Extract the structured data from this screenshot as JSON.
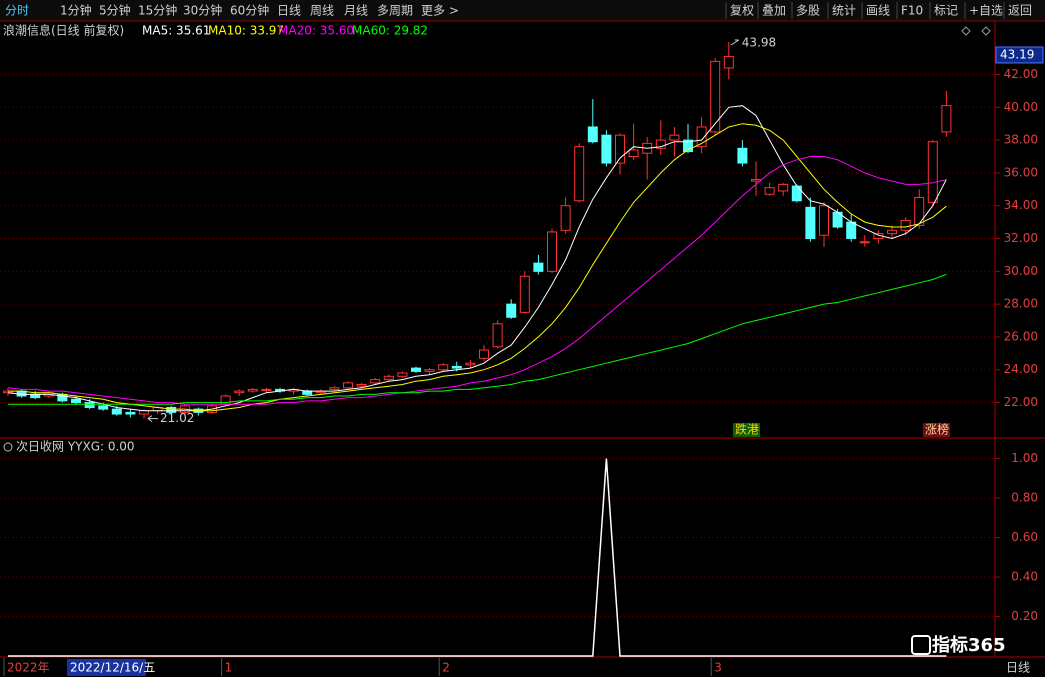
{
  "toolbar": {
    "left": [
      "分时",
      "1分钟",
      "5分钟",
      "15分钟",
      "30分钟",
      "60分钟",
      "日线",
      "周线",
      "月线",
      "多周期",
      "更多 >"
    ],
    "right": [
      "复权",
      "叠加",
      "多股",
      "统计",
      "画线",
      "F10",
      "标记",
      "+自选",
      "返回"
    ]
  },
  "badges": [
    "跌港",
    "涨榜"
  ],
  "cursor_label": "2022/12/16/五",
  "cursor_price": 43.19,
  "logo": "指标365",
  "period": "日线",
  "chart_data": [
    {
      "type": "candlestick",
      "title": "浪潮信息(日线 前复权)",
      "categories": [
        "2022年",
        null,
        null,
        null,
        null,
        null,
        null,
        null,
        null,
        null,
        null,
        null,
        null,
        null,
        null,
        null,
        "1",
        null,
        null,
        null,
        null,
        null,
        null,
        null,
        null,
        null,
        null,
        null,
        null,
        null,
        null,
        null,
        "2",
        null,
        null,
        null,
        null,
        null,
        null,
        null,
        null,
        null,
        null,
        null,
        null,
        null,
        null,
        null,
        null,
        null,
        null,
        null,
        "3",
        null,
        null,
        null,
        null,
        null,
        null,
        null,
        null,
        null,
        null,
        null,
        null,
        null,
        null,
        null,
        null,
        null
      ],
      "open": [
        22.6,
        22.7,
        22.5,
        22.4,
        22.5,
        22.2,
        22.0,
        21.8,
        21.6,
        21.4,
        21.3,
        21.5,
        21.7,
        21.4,
        21.6,
        21.4,
        21.9,
        22.6,
        22.7,
        22.8,
        22.8,
        22.7,
        22.7,
        22.6,
        22.8,
        22.9,
        23.0,
        23.2,
        23.4,
        23.6,
        24.1,
        23.9,
        24.0,
        24.2,
        24.3,
        24.7,
        25.4,
        28.0,
        27.5,
        30.5,
        30.0,
        32.5,
        34.3,
        38.8,
        38.3,
        36.6,
        37.0,
        37.2,
        37.5,
        38.0,
        38.0,
        37.6,
        38.5,
        42.4,
        37.5,
        35.5,
        34.7,
        34.9,
        35.2,
        33.9,
        32.2,
        33.6,
        33.0,
        31.8,
        32.0,
        32.3,
        32.5,
        32.8,
        34.2,
        38.5
      ],
      "high": [
        22.9,
        22.8,
        22.7,
        22.7,
        22.6,
        22.4,
        22.2,
        22.0,
        21.8,
        21.6,
        21.6,
        21.8,
        21.8,
        21.9,
        21.7,
        21.9,
        22.5,
        22.8,
        22.9,
        22.9,
        22.9,
        22.9,
        22.8,
        22.8,
        23.0,
        23.3,
        23.2,
        23.5,
        23.7,
        23.9,
        24.2,
        24.1,
        24.4,
        24.5,
        24.6,
        25.5,
        27.0,
        28.3,
        30.0,
        31.0,
        32.6,
        34.5,
        37.8,
        40.5,
        38.6,
        38.4,
        39.0,
        38.2,
        39.2,
        38.8,
        39.0,
        39.4,
        43.0,
        43.98,
        38.0,
        36.7,
        35.4,
        35.4,
        35.3,
        34.5,
        34.2,
        33.8,
        33.5,
        32.2,
        32.5,
        32.8,
        33.3,
        35.0,
        38.0,
        41.0
      ],
      "low": [
        22.4,
        22.3,
        22.2,
        22.3,
        22.0,
        21.9,
        21.6,
        21.5,
        21.2,
        21.1,
        21.02,
        21.3,
        21.3,
        21.3,
        21.2,
        21.3,
        21.8,
        22.4,
        22.6,
        22.6,
        22.6,
        22.5,
        22.4,
        22.5,
        22.7,
        22.8,
        22.9,
        23.1,
        23.3,
        23.5,
        23.8,
        23.7,
        23.9,
        23.9,
        24.1,
        24.5,
        25.3,
        27.1,
        27.4,
        29.8,
        29.9,
        32.3,
        34.2,
        37.8,
        36.4,
        35.9,
        36.8,
        35.6,
        37.1,
        37.0,
        37.2,
        37.2,
        38.3,
        41.7,
        36.4,
        34.6,
        34.6,
        34.6,
        34.2,
        31.8,
        31.5,
        32.6,
        31.8,
        31.5,
        31.7,
        32.0,
        32.2,
        32.6,
        34.0,
        38.2
      ],
      "close": [
        22.7,
        22.4,
        22.3,
        22.6,
        22.1,
        22.0,
        21.7,
        21.6,
        21.3,
        21.3,
        21.5,
        21.7,
        21.4,
        21.8,
        21.4,
        21.8,
        22.4,
        22.7,
        22.8,
        22.8,
        22.7,
        22.8,
        22.5,
        22.7,
        22.9,
        23.2,
        23.1,
        23.4,
        23.6,
        23.8,
        23.9,
        24.0,
        24.3,
        24.1,
        24.4,
        25.2,
        26.8,
        27.2,
        29.7,
        30.0,
        32.4,
        34.0,
        37.6,
        37.9,
        36.6,
        38.3,
        37.4,
        37.8,
        38.0,
        38.3,
        37.3,
        38.8,
        42.8,
        43.1,
        36.6,
        35.6,
        35.1,
        35.3,
        34.3,
        32.0,
        34.0,
        32.7,
        32.0,
        31.8,
        32.3,
        32.5,
        33.1,
        34.5,
        37.9,
        40.1
      ],
      "up_color": "#ff3232",
      "down_color": "#54ffff",
      "series": [
        {
          "name": "MA5: 35.61",
          "color": "#ffffff",
          "values": [
            22.6,
            22.5,
            22.5,
            22.5,
            22.4,
            22.3,
            22.1,
            21.9,
            21.7,
            21.6,
            21.5,
            21.5,
            21.5,
            21.5,
            21.5,
            21.6,
            21.8,
            22.0,
            22.3,
            22.6,
            22.7,
            22.8,
            22.7,
            22.7,
            22.7,
            22.8,
            22.9,
            23.1,
            23.3,
            23.4,
            23.6,
            23.7,
            23.9,
            24.0,
            24.1,
            24.4,
            25.0,
            25.5,
            26.6,
            27.8,
            29.2,
            30.7,
            32.7,
            34.4,
            35.7,
            36.9,
            37.6,
            37.5,
            37.6,
            37.9,
            37.9,
            38.0,
            39.0,
            40.0,
            40.1,
            39.5,
            38.0,
            36.5,
            35.2,
            34.3,
            34.1,
            33.6,
            33.0,
            32.6,
            32.2,
            32.0,
            32.3,
            32.9,
            34.0,
            35.61
          ]
        },
        {
          "name": "MA10: 33.97",
          "color": "#ffff00",
          "values": [
            22.7,
            22.7,
            22.6,
            22.6,
            22.5,
            22.4,
            22.3,
            22.2,
            22.0,
            21.9,
            21.8,
            21.7,
            21.6,
            21.6,
            21.5,
            21.5,
            21.6,
            21.7,
            21.9,
            22.0,
            22.2,
            22.3,
            22.4,
            22.5,
            22.6,
            22.7,
            22.8,
            22.9,
            23.0,
            23.1,
            23.3,
            23.4,
            23.6,
            23.7,
            23.8,
            24.0,
            24.3,
            24.7,
            25.3,
            26.0,
            26.8,
            27.8,
            29.0,
            30.4,
            31.7,
            33.0,
            34.2,
            35.1,
            36.0,
            36.8,
            37.4,
            37.8,
            38.3,
            38.8,
            39.0,
            38.9,
            38.6,
            38.0,
            37.0,
            36.0,
            35.0,
            34.2,
            33.5,
            33.0,
            32.8,
            32.7,
            32.7,
            32.9,
            33.3,
            33.97
          ]
        },
        {
          "name": "MA20: 35.60",
          "color": "#ff00ff",
          "values": [
            22.9,
            22.8,
            22.8,
            22.7,
            22.7,
            22.6,
            22.5,
            22.4,
            22.3,
            22.2,
            22.1,
            22.0,
            22.0,
            21.9,
            21.9,
            21.9,
            21.9,
            21.9,
            21.9,
            21.9,
            22.0,
            22.0,
            22.1,
            22.1,
            22.2,
            22.3,
            22.3,
            22.4,
            22.5,
            22.6,
            22.7,
            22.8,
            22.9,
            23.0,
            23.2,
            23.3,
            23.5,
            23.7,
            24.0,
            24.4,
            24.8,
            25.3,
            25.9,
            26.6,
            27.3,
            28.0,
            28.7,
            29.4,
            30.1,
            30.8,
            31.5,
            32.2,
            33.0,
            33.8,
            34.6,
            35.3,
            36.0,
            36.5,
            36.8,
            37.0,
            37.0,
            36.8,
            36.4,
            36.0,
            35.7,
            35.5,
            35.3,
            35.3,
            35.4,
            35.6
          ]
        },
        {
          "name": "MA60: 29.82",
          "color": "#00ff00",
          "values": [
            21.9,
            21.9,
            21.9,
            21.9,
            21.9,
            21.9,
            21.9,
            21.9,
            21.9,
            21.9,
            21.9,
            21.9,
            21.9,
            22.0,
            22.0,
            22.0,
            22.0,
            22.1,
            22.1,
            22.1,
            22.2,
            22.2,
            22.3,
            22.3,
            22.4,
            22.4,
            22.5,
            22.5,
            22.6,
            22.6,
            22.6,
            22.7,
            22.7,
            22.8,
            22.8,
            22.9,
            23.0,
            23.1,
            23.3,
            23.4,
            23.6,
            23.8,
            24.0,
            24.2,
            24.4,
            24.6,
            24.8,
            25.0,
            25.2,
            25.4,
            25.6,
            25.9,
            26.2,
            26.5,
            26.8,
            27.0,
            27.2,
            27.4,
            27.6,
            27.8,
            28.0,
            28.1,
            28.3,
            28.5,
            28.7,
            28.9,
            29.1,
            29.3,
            29.5,
            29.82
          ]
        }
      ],
      "ylim": [
        19.9,
        45.2
      ],
      "yticks": [
        {
          "value": 22,
          "label": "22.00"
        },
        {
          "value": 24,
          "label": "24.00"
        },
        {
          "value": 26,
          "label": "26.00"
        },
        {
          "value": 28,
          "label": "28.00"
        },
        {
          "value": 30,
          "label": "30.00"
        },
        {
          "value": 32,
          "label": "32.00"
        },
        {
          "value": 34,
          "label": "34.00"
        },
        {
          "value": 36,
          "label": "36.00"
        },
        {
          "value": 38,
          "label": "38.00"
        },
        {
          "value": 40,
          "label": "40.00"
        },
        {
          "value": 42,
          "label": "42.00"
        }
      ],
      "grid": true
    },
    {
      "type": "line",
      "title": "次日收网 YYXG: 0.00",
      "series": [
        {
          "name": "YYXG",
          "color": "#ffffff",
          "values": [
            0,
            0,
            0,
            0,
            0,
            0,
            0,
            0,
            0,
            0,
            0,
            0,
            0,
            0,
            0,
            0,
            0,
            0,
            0,
            0,
            0,
            0,
            0,
            0,
            0,
            0,
            0,
            0,
            0,
            0,
            0,
            0,
            0,
            0,
            0,
            0,
            0,
            0,
            0,
            0,
            0,
            0,
            0,
            0,
            1,
            0,
            0,
            0,
            0,
            0,
            0,
            0,
            0,
            0,
            0,
            0,
            0,
            0,
            0,
            0,
            0,
            0,
            0,
            0,
            0,
            0,
            0,
            0,
            0,
            0
          ]
        }
      ],
      "ylim": [
        0,
        1.094
      ],
      "yticks": [
        {
          "value": 0.2,
          "label": "0.20"
        },
        {
          "value": 0.4,
          "label": "0.40"
        },
        {
          "value": 0.6,
          "label": "0.60"
        },
        {
          "value": 0.8,
          "label": "0.80"
        },
        {
          "value": 1,
          "label": "1.00"
        }
      ],
      "grid": true
    }
  ]
}
